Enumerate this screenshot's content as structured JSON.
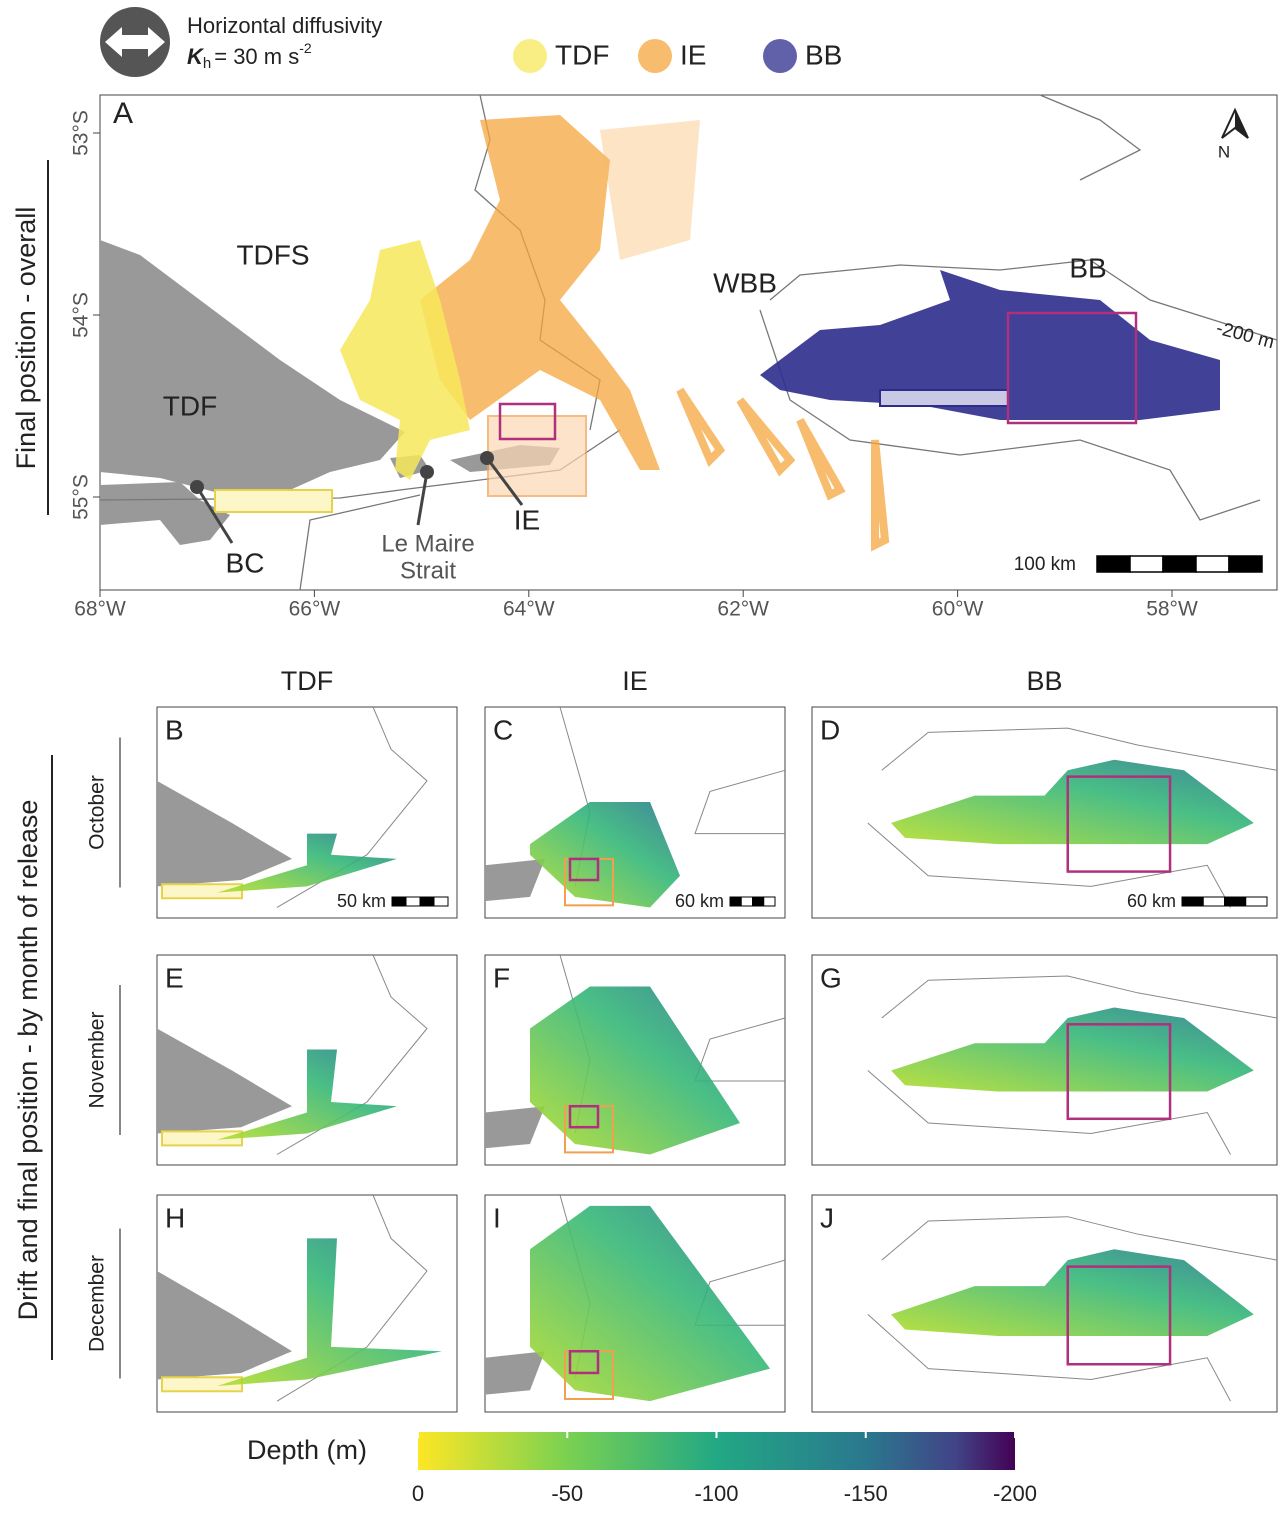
{
  "legend_header": {
    "title": "Horizontal diffusivity",
    "kh": {
      "symbol": "K",
      "subscript": "h",
      "text": "= 30 m s",
      "superscript": "-2"
    }
  },
  "legend": {
    "items": [
      {
        "name": "TDF",
        "color": "#f7e85a"
      },
      {
        "name": "IE",
        "color": "#f4a63c"
      },
      {
        "name": "BB",
        "color": "#2c2c8c"
      }
    ]
  },
  "main_panel": {
    "label": "A",
    "side_label": "Final position - overall",
    "lat_ticks": [
      {
        "value": -53,
        "label": "53°S"
      },
      {
        "value": -54,
        "label": "54°S"
      },
      {
        "value": -55,
        "label": "55°S"
      }
    ],
    "lon_ticks": [
      {
        "value": -68,
        "label": "68°W"
      },
      {
        "value": -66,
        "label": "66°W"
      },
      {
        "value": -64,
        "label": "64°W"
      },
      {
        "value": -62,
        "label": "62°W"
      },
      {
        "value": -60,
        "label": "60°W"
      },
      {
        "value": -58,
        "label": "58°W"
      }
    ],
    "places": {
      "tdfs": "TDFS",
      "tdf": "TDF",
      "wbb": "WBB",
      "bb": "BB",
      "isobath": "-200 m",
      "bc": "BC",
      "lemaire1": "Le Maire",
      "lemaire2": "Strait",
      "ie": "IE"
    },
    "north": "N",
    "scale": "100 km"
  },
  "lower": {
    "side_label": "Drift and final position - by month of release",
    "columns": [
      "TDF",
      "IE",
      "BB"
    ],
    "rows": [
      "October",
      "November",
      "December"
    ],
    "panels": [
      {
        "label": "B",
        "scale": "50 km"
      },
      {
        "label": "C",
        "scale": "60 km"
      },
      {
        "label": "D",
        "scale": "60 km"
      },
      {
        "label": "E"
      },
      {
        "label": "F"
      },
      {
        "label": "G"
      },
      {
        "label": "H"
      },
      {
        "label": "I"
      },
      {
        "label": "J"
      }
    ]
  },
  "colorbar": {
    "title": "Depth (m)",
    "lim": [
      0,
      -200
    ],
    "ticks": [
      0,
      -50,
      -100,
      -150,
      -200
    ]
  }
}
